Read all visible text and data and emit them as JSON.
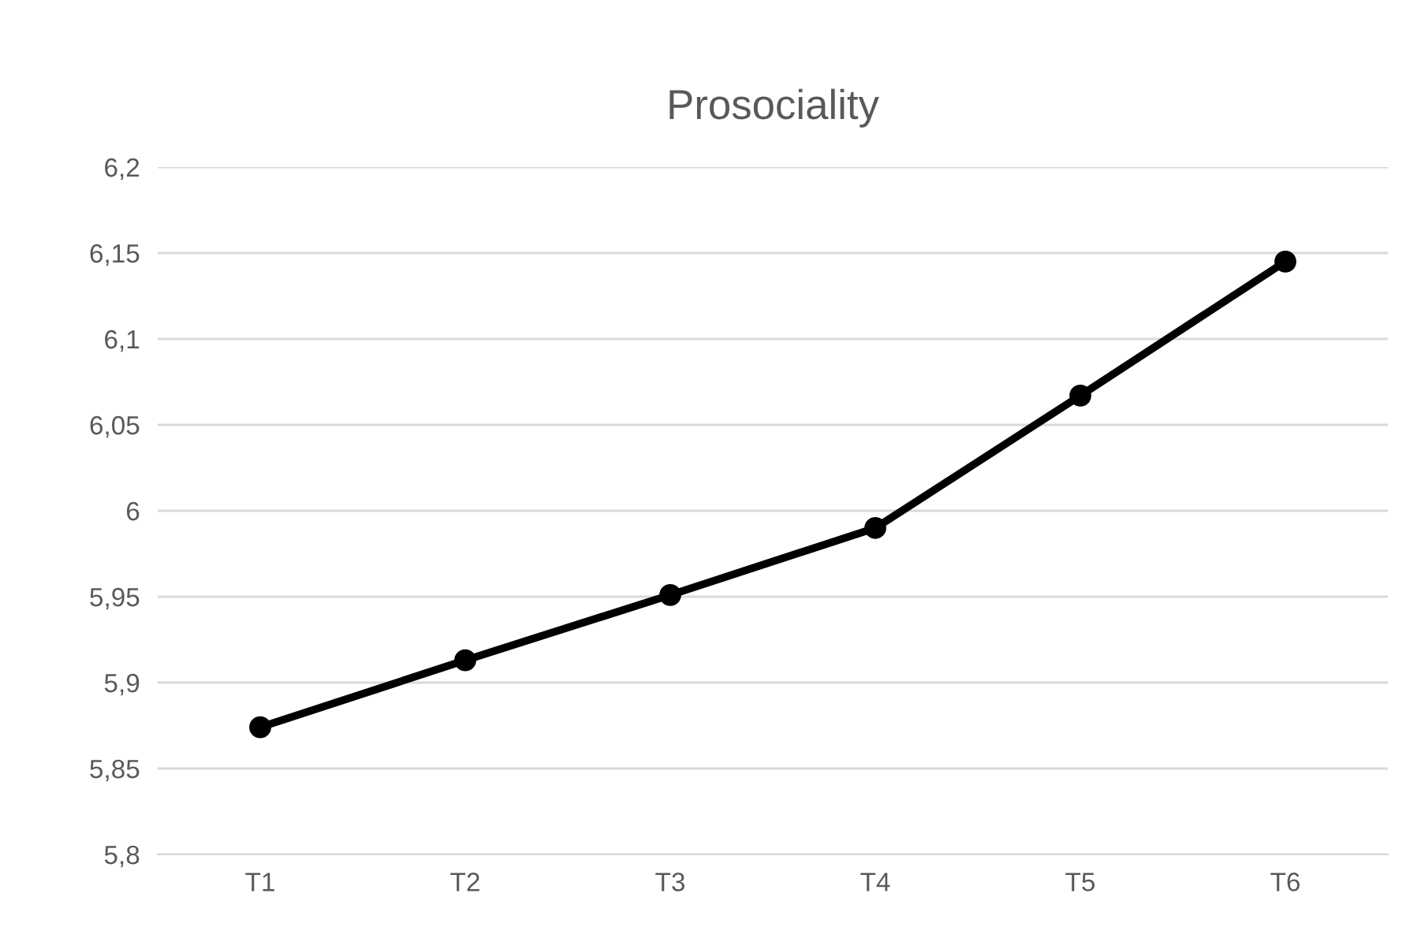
{
  "chart_data": {
    "type": "line",
    "title": "Prosociality",
    "categories": [
      "T1",
      "T2",
      "T3",
      "T4",
      "T5",
      "T6"
    ],
    "series": [
      {
        "color": "#000000",
        "values": [
          5.874,
          5.913,
          5.951,
          5.99,
          6.067,
          6.145
        ]
      }
    ],
    "ylim": [
      5.8,
      6.2
    ],
    "yticks": [
      {
        "value": 5.8,
        "label": "5,8"
      },
      {
        "value": 5.85,
        "label": "5,85"
      },
      {
        "value": 5.9,
        "label": "5,9"
      },
      {
        "value": 5.95,
        "label": "5,95"
      },
      6,
      {
        "value": 6.05,
        "label": "6,05"
      },
      {
        "value": 6.1,
        "label": "6,1"
      },
      {
        "value": 6.15,
        "label": "6,15"
      },
      {
        "value": 6.2,
        "label": "6,2"
      }
    ],
    "grid": "y",
    "marker": "circle",
    "line_style": "solid",
    "legend": false
  }
}
